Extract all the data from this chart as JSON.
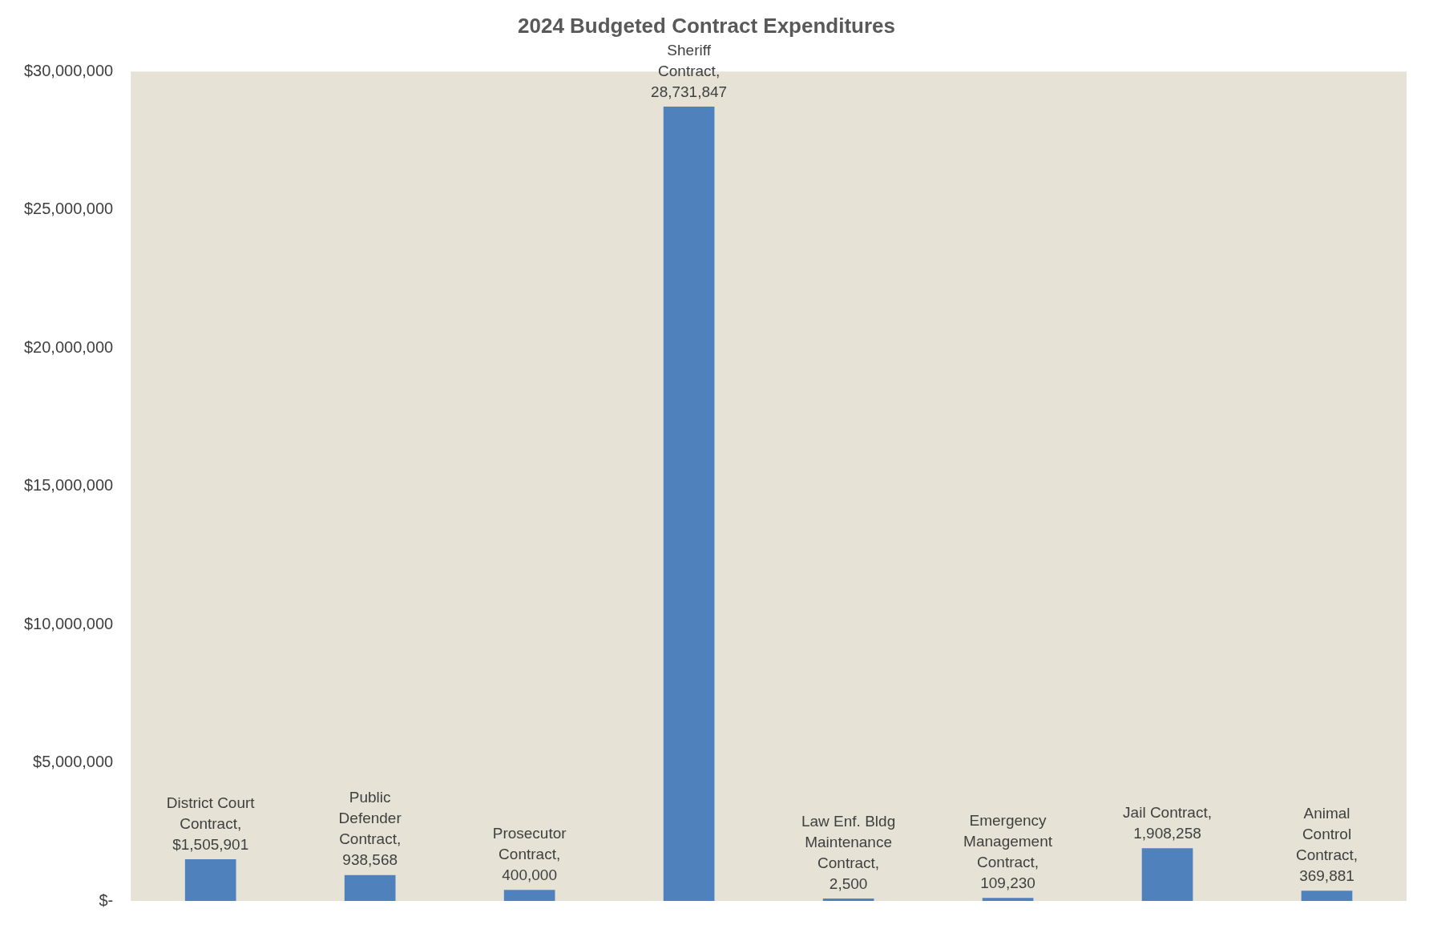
{
  "chart_data": {
    "type": "bar",
    "title": "2024 Budgeted Contract Expenditures",
    "categories": [
      null,
      null,
      null,
      null,
      null,
      null,
      null,
      null
    ],
    "values": [
      1505901,
      938568,
      400000,
      28731847,
      2500,
      109230,
      1908258,
      369881
    ],
    "value_labels": [
      "District Court Contract, $1,505,901",
      "Public Defender Contract, 938,568",
      "Prosecutor Contract, 400,000",
      "Sheriff Contract, 28,731,847",
      "Law Enf. Bldg Maintenance Contract, 2,500",
      "Emergency Management Contract, 109,230",
      "Jail Contract, 1,908,258",
      "Animal Control Contract, 369,881"
    ],
    "color": "#4f81bd",
    "ylim": [
      0,
      30000000
    ],
    "yticks": [
      {
        "value": 0,
        "label": "$-"
      },
      {
        "value": 5000000,
        "label": "$5,000,000"
      },
      {
        "value": 10000000,
        "label": "$10,000,000"
      },
      {
        "value": 15000000,
        "label": "$15,000,000"
      },
      {
        "value": 20000000,
        "label": "$20,000,000"
      },
      {
        "value": 25000000,
        "label": "$25,000,000"
      },
      {
        "value": 30000000,
        "label": "$30,000,000"
      }
    ],
    "grid": false,
    "legend": false,
    "tick_labels": "y"
  }
}
